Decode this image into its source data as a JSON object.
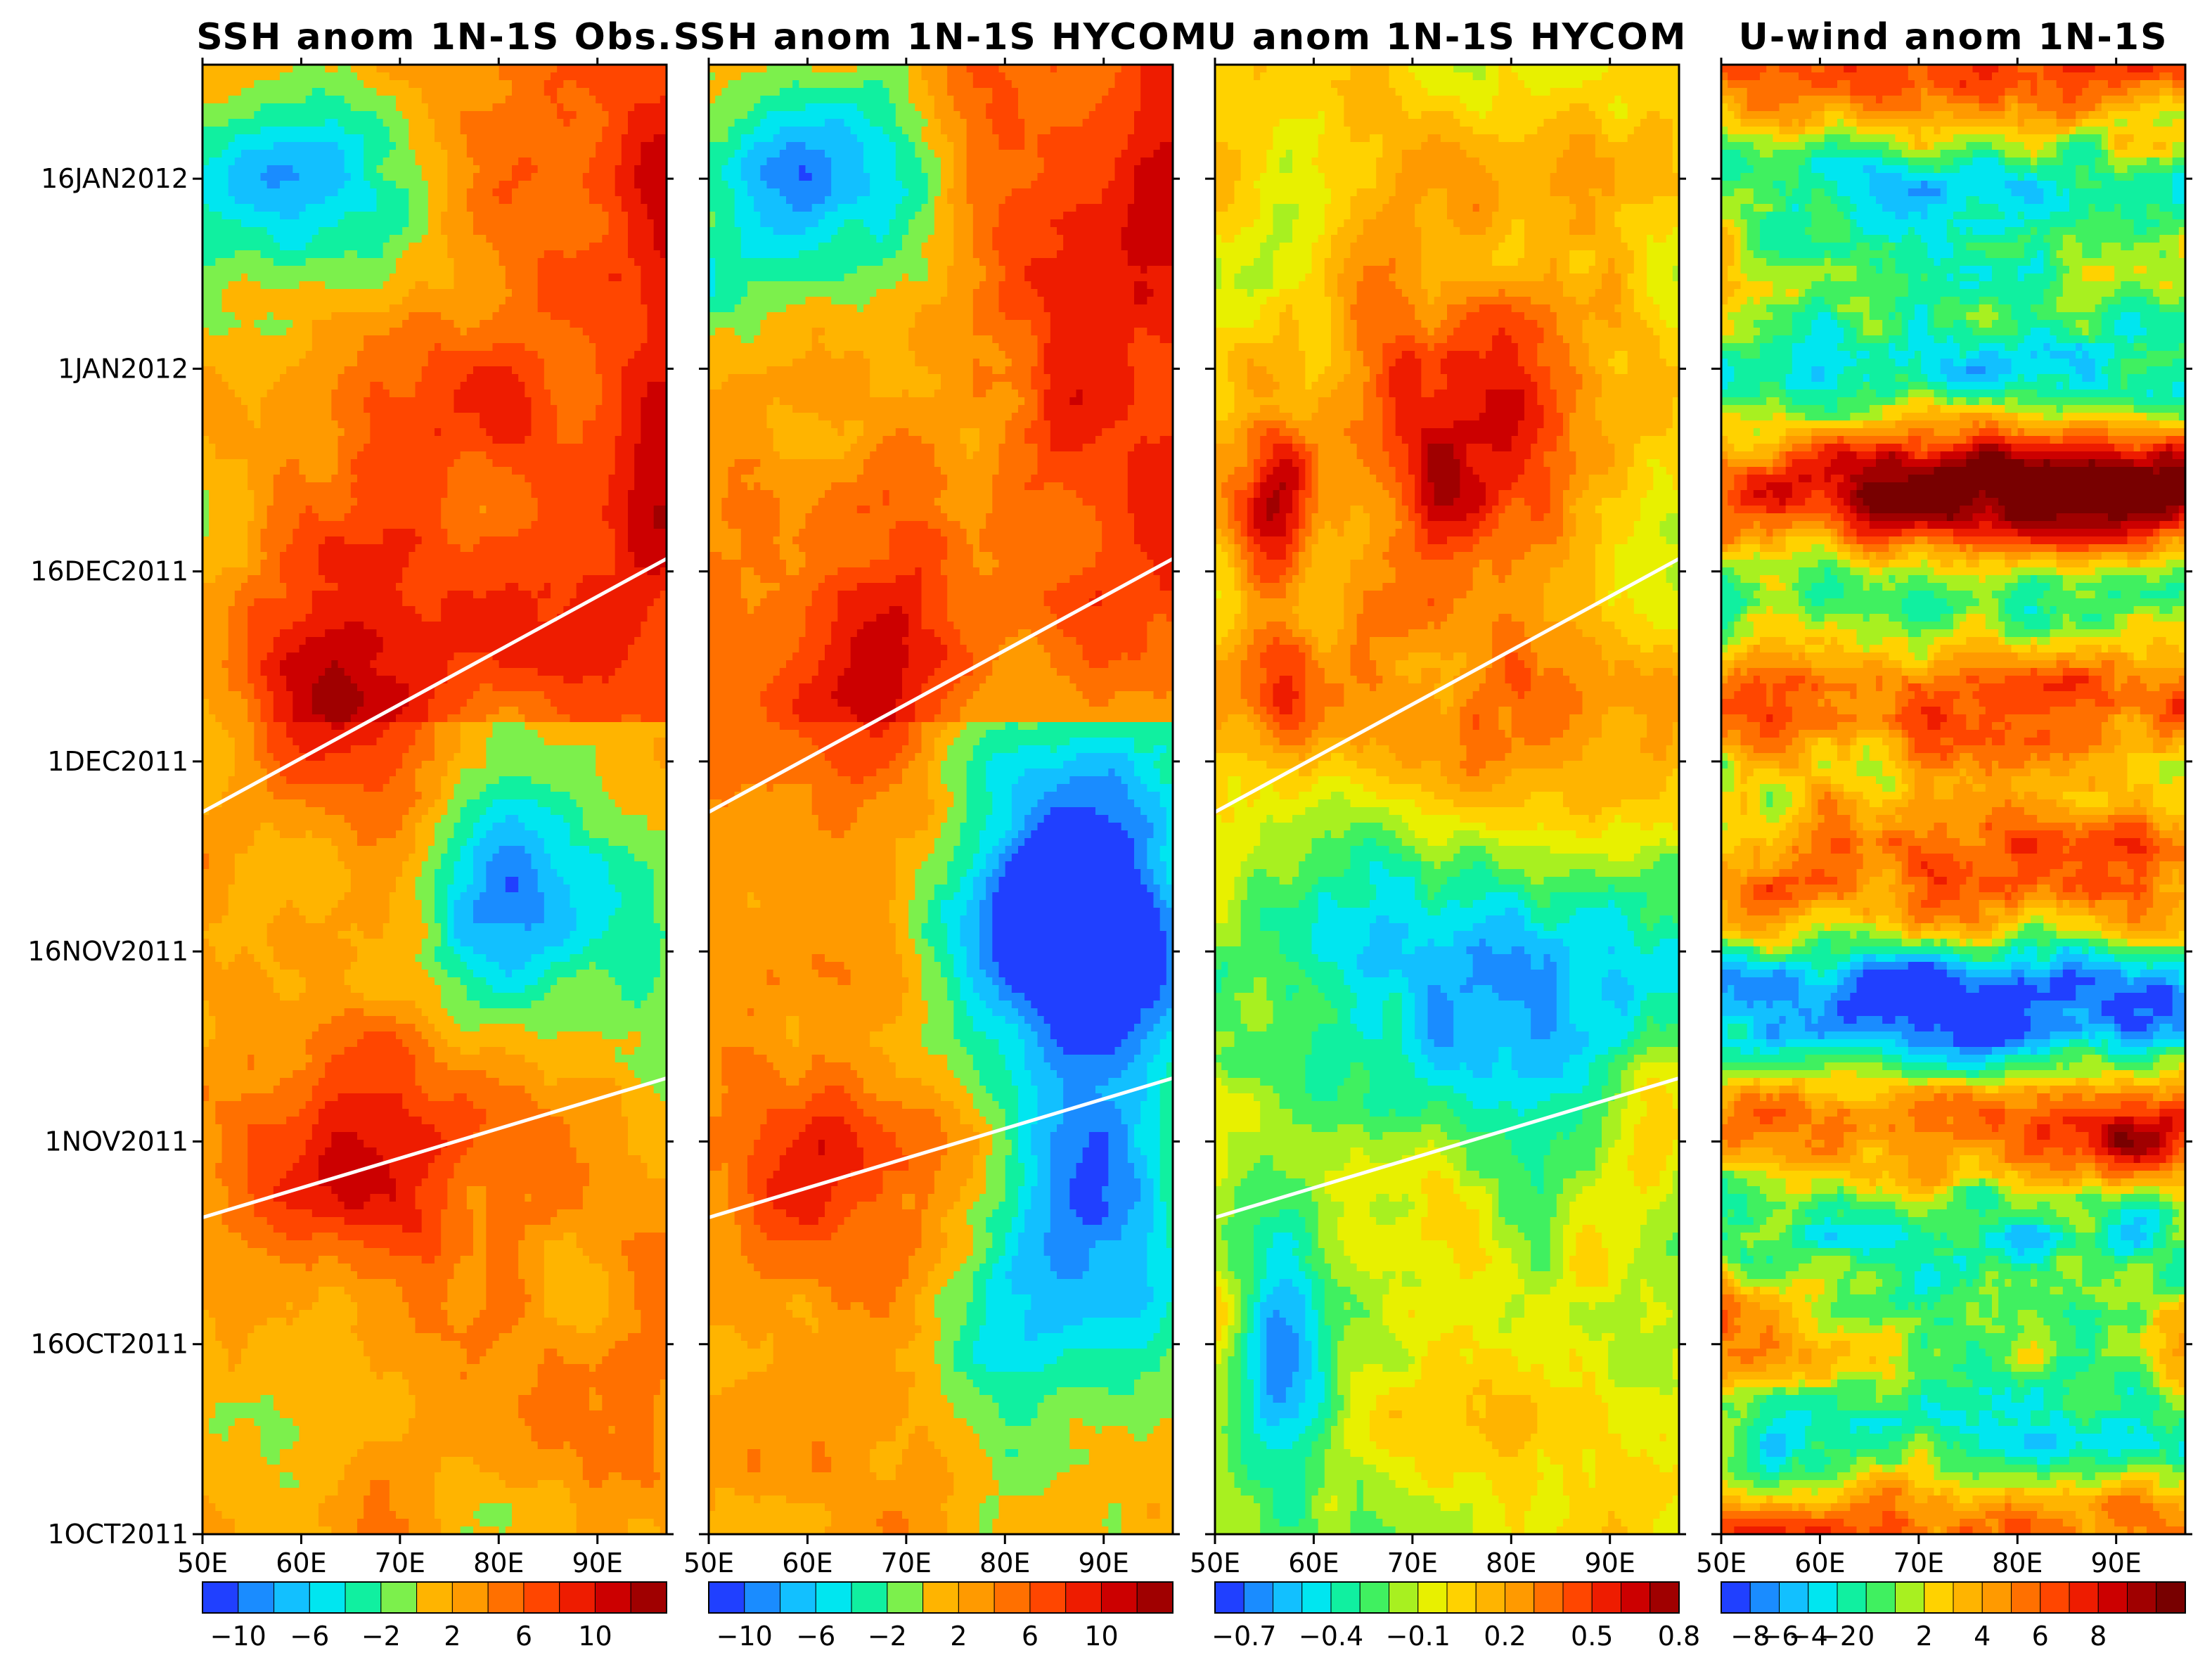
{
  "chart_data": [
    {
      "type": "heatmap",
      "title": "SSH anom 1N-1S Obs.",
      "x_ticks": [
        "50E",
        "60E",
        "70E",
        "80E",
        "90E"
      ],
      "xlim": [
        50,
        97
      ],
      "y_ticks": [
        "1OCT2011",
        "16OCT2011",
        "1NOV2011",
        "16NOV2011",
        "1DEC2011",
        "16DEC2011",
        "1JAN2012",
        "16JAN2012"
      ],
      "ylim": [
        "1OCT2011",
        "25JAN2012"
      ],
      "colorbar": {
        "palette": [
          "#2040ff",
          "#1a8cff",
          "#12c0ff",
          "#00e6f0",
          "#10f0a0",
          "#7cf04c",
          "#ffb400",
          "#ff9a00",
          "#ff7000",
          "#ff4600",
          "#ee1c00",
          "#cc0000",
          "#a00000"
        ],
        "labels": [
          "-10",
          "-6",
          "-2",
          "2",
          "6",
          "10"
        ],
        "label_positions": [
          1,
          3,
          5,
          7,
          9,
          11
        ]
      },
      "reference_lines": [
        {
          "from": [
            50,
            "26OCT2011"
          ],
          "to": [
            97,
            "6NOV2011"
          ]
        },
        {
          "from": [
            50,
            "27NOV2011"
          ],
          "to": [
            97,
            "17DEC2011"
          ]
        }
      ]
    },
    {
      "type": "heatmap",
      "title": "SSH anom 1N-1S HYCOM",
      "x_ticks": [
        "50E",
        "60E",
        "70E",
        "80E",
        "90E"
      ],
      "xlim": [
        50,
        97
      ],
      "y_ticks": [
        "1OCT2011",
        "16OCT2011",
        "1NOV2011",
        "16NOV2011",
        "1DEC2011",
        "16DEC2011",
        "1JAN2012",
        "16JAN2012"
      ],
      "ylim": [
        "1OCT2011",
        "25JAN2012"
      ],
      "colorbar": {
        "palette": [
          "#2040ff",
          "#1a8cff",
          "#12c0ff",
          "#00e6f0",
          "#10f0a0",
          "#7cf04c",
          "#ffb400",
          "#ff9a00",
          "#ff7000",
          "#ff4600",
          "#ee1c00",
          "#cc0000",
          "#a00000"
        ],
        "labels": [
          "-10",
          "-6",
          "-2",
          "2",
          "6",
          "10"
        ],
        "label_positions": [
          1,
          3,
          5,
          7,
          9,
          11
        ]
      },
      "reference_lines": [
        {
          "from": [
            50,
            "26OCT2011"
          ],
          "to": [
            97,
            "6NOV2011"
          ]
        },
        {
          "from": [
            50,
            "27NOV2011"
          ],
          "to": [
            97,
            "17DEC2011"
          ]
        }
      ]
    },
    {
      "type": "heatmap",
      "title": "U anom 1N-1S HYCOM",
      "x_ticks": [
        "50E",
        "60E",
        "70E",
        "80E",
        "90E"
      ],
      "xlim": [
        50,
        97
      ],
      "y_ticks": [
        "1OCT2011",
        "16OCT2011",
        "1NOV2011",
        "16NOV2011",
        "1DEC2011",
        "16DEC2011",
        "1JAN2012",
        "16JAN2012"
      ],
      "ylim": [
        "1OCT2011",
        "25JAN2012"
      ],
      "colorbar": {
        "palette": [
          "#2040ff",
          "#1a8cff",
          "#12c0ff",
          "#00e6f0",
          "#10f0a0",
          "#40f060",
          "#a8f020",
          "#e8f000",
          "#ffd200",
          "#ffb400",
          "#ff9a00",
          "#ff7000",
          "#ff4600",
          "#ee1c00",
          "#cc0000",
          "#a00000"
        ],
        "labels": [
          "-0.7",
          "-0.4",
          "-0.1",
          "0.2",
          "0.5",
          "0.8"
        ],
        "label_positions": [
          1,
          4,
          7,
          10,
          13,
          16
        ]
      },
      "reference_lines": [
        {
          "from": [
            50,
            "26OCT2011"
          ],
          "to": [
            97,
            "6NOV2011"
          ]
        },
        {
          "from": [
            50,
            "27NOV2011"
          ],
          "to": [
            97,
            "17DEC2011"
          ]
        }
      ]
    },
    {
      "type": "heatmap",
      "title": "U-wind anom 1N-1S",
      "x_ticks": [
        "50E",
        "60E",
        "70E",
        "80E",
        "90E"
      ],
      "xlim": [
        50,
        97
      ],
      "y_ticks": [
        "1OCT2011",
        "16OCT2011",
        "1NOV2011",
        "16NOV2011",
        "1DEC2011",
        "16DEC2011",
        "1JAN2012",
        "16JAN2012"
      ],
      "ylim": [
        "1OCT2011",
        "25JAN2012"
      ],
      "colorbar": {
        "palette": [
          "#2040ff",
          "#1a8cff",
          "#12c0ff",
          "#00e6f0",
          "#10f0a0",
          "#40f060",
          "#a8f020",
          "#ffd200",
          "#ffb400",
          "#ff9a00",
          "#ff7000",
          "#ff4600",
          "#ee1c00",
          "#cc0000",
          "#a00000",
          "#780000"
        ],
        "labels": [
          "-8",
          "-6",
          "-4",
          "-2",
          "0",
          "2",
          "4",
          "6",
          "8"
        ],
        "label_positions": [
          1,
          2,
          3,
          4,
          5,
          7,
          9,
          11,
          13
        ]
      },
      "reference_lines": []
    }
  ]
}
